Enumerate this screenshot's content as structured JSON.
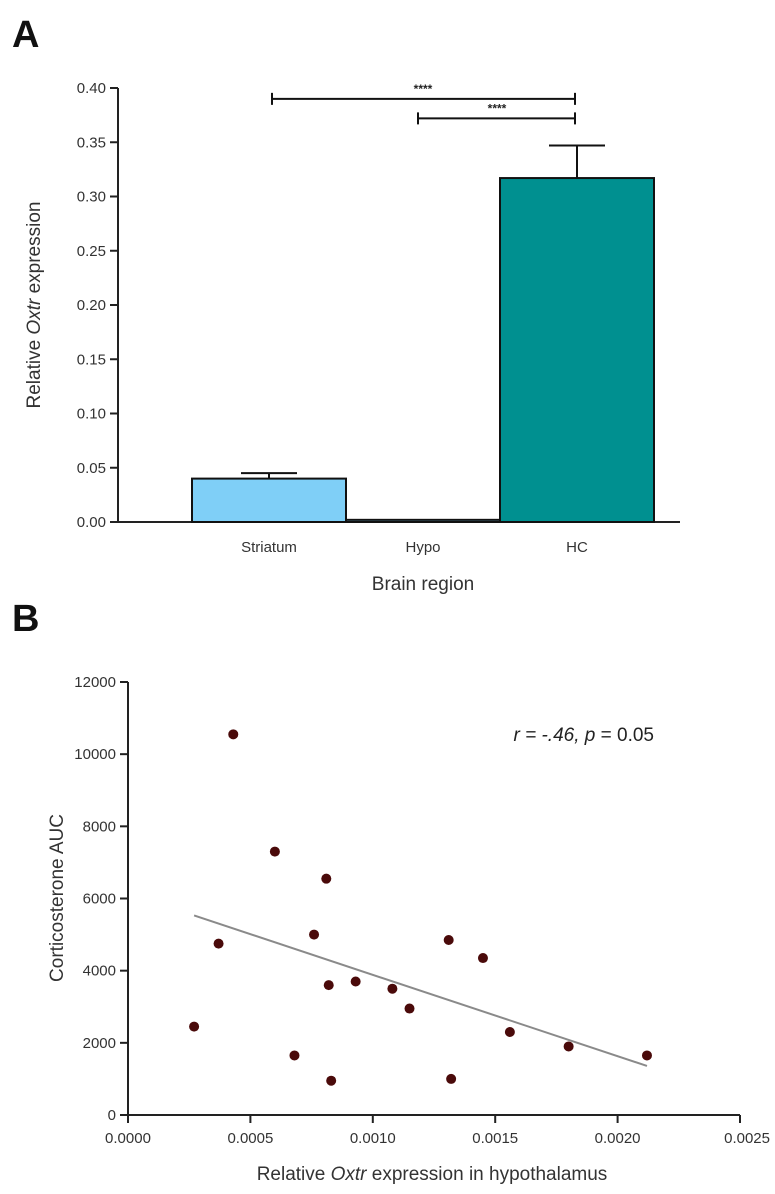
{
  "panels": {
    "a_label": "A",
    "b_label": "B"
  },
  "chart_data": [
    {
      "type": "bar",
      "panel": "A",
      "categories": [
        "Striatum",
        "Hypo",
        "HC"
      ],
      "values": [
        0.04,
        0.002,
        0.317
      ],
      "errors": [
        0.005,
        0.0,
        0.03
      ],
      "colors": [
        "#7fcff7",
        "#7fcff7",
        "#009090"
      ],
      "xlabel": "Brain region",
      "ylabel_parts": [
        "Relative ",
        "Oxtr",
        " expression"
      ],
      "ylim": [
        0,
        0.4
      ],
      "yticks": [
        "0.00",
        "0.05",
        "0.10",
        "0.15",
        "0.20",
        "0.25",
        "0.30",
        "0.35",
        "0.40"
      ],
      "significance": [
        {
          "from": 0,
          "to": 2,
          "label": "****",
          "y": 0.39
        },
        {
          "from": 1,
          "to": 2,
          "label": "****",
          "y": 0.372
        }
      ]
    },
    {
      "type": "scatter",
      "panel": "B",
      "xlabel_parts": [
        "Relative ",
        "Oxtr",
        " expression in hypothalamus"
      ],
      "ylabel": "Corticosterone AUC",
      "xlim": [
        0,
        0.0025
      ],
      "ylim": [
        0,
        12000
      ],
      "xticks": [
        "0.0000",
        "0.0005",
        "0.0010",
        "0.0015",
        "0.0020",
        "0.0025"
      ],
      "yticks": [
        "0",
        "2000",
        "4000",
        "6000",
        "8000",
        "10000",
        "12000"
      ],
      "points": [
        [
          0.00027,
          2450
        ],
        [
          0.00037,
          4750
        ],
        [
          0.00043,
          10550
        ],
        [
          0.0006,
          7300
        ],
        [
          0.00068,
          1650
        ],
        [
          0.00076,
          5000
        ],
        [
          0.00081,
          6550
        ],
        [
          0.00082,
          3600
        ],
        [
          0.00083,
          950
        ],
        [
          0.00093,
          3700
        ],
        [
          0.00108,
          3500
        ],
        [
          0.00115,
          2950
        ],
        [
          0.00131,
          4850
        ],
        [
          0.00132,
          1000
        ],
        [
          0.00145,
          4350
        ],
        [
          0.00156,
          2300
        ],
        [
          0.0018,
          1900
        ],
        [
          0.00212,
          1650
        ]
      ],
      "regression": {
        "x": [
          0.00027,
          0.00212
        ],
        "y": [
          5530,
          1360
        ]
      },
      "point_color": "#4a0a0a",
      "annotation": {
        "r_label": "r",
        "r_value": " = -.46, ",
        "p_label": "p",
        "p_value": " = 0.05"
      }
    }
  ]
}
